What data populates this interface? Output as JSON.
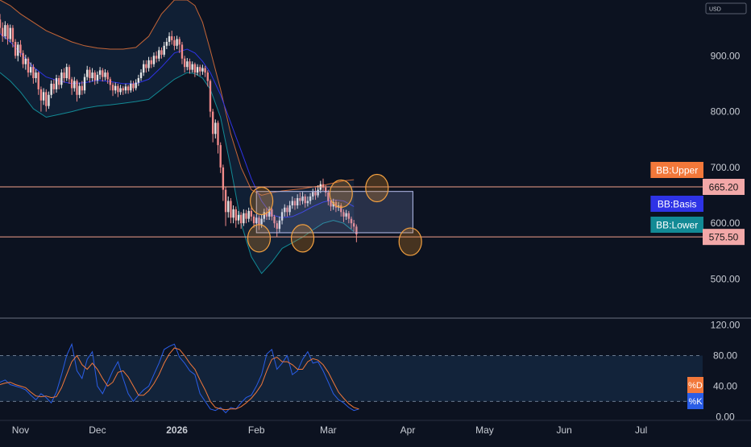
{
  "chart_data": {
    "type": "candlestick",
    "currency": "USD",
    "price_ticks": [
      "900.00",
      "800.00",
      "700.00",
      "600.00",
      "500.00"
    ],
    "price_tick_values": [
      900,
      800,
      700,
      600,
      500
    ],
    "price_range": [
      430,
      1000
    ],
    "osc_ticks": [
      "120.00",
      "80.00",
      "40.00",
      "0.00"
    ],
    "osc_tick_values": [
      120,
      80,
      40,
      0
    ],
    "osc_range": [
      -5,
      128
    ],
    "x_labels": [
      "Nov",
      "Dec",
      "2026",
      "Feb",
      "Mar",
      "Apr",
      "May",
      "Jun",
      "Jul"
    ],
    "x_label_days": [
      0,
      30,
      61,
      92,
      120,
      151,
      181,
      212,
      242
    ],
    "date_range_days": [
      -8,
      266
    ],
    "hlines": [
      {
        "value": 665.2,
        "label": "665.20"
      },
      {
        "value": 575.5,
        "label": "575.50"
      }
    ],
    "range_box": {
      "day_start": 92,
      "day_end": 153,
      "price_low": 583,
      "price_high": 657
    },
    "highlight_circles": [
      {
        "day": 94,
        "price": 640
      },
      {
        "day": 93,
        "price": 573
      },
      {
        "day": 110,
        "price": 573
      },
      {
        "day": 125,
        "price": 653
      },
      {
        "day": 139,
        "price": 663
      },
      {
        "day": 152,
        "price": 567
      }
    ],
    "legend": [
      {
        "text": "BB:Upper",
        "color": "#f2783a",
        "value_for": "upper"
      },
      {
        "text": "BB:Basis",
        "color": "#2e33e6",
        "value_for": "basis"
      },
      {
        "text": "BB:Lower",
        "color": "#128a95",
        "value_for": "lower"
      }
    ],
    "osc_legend": [
      {
        "text": "%D",
        "color": "#f2783a"
      },
      {
        "text": "%K",
        "color": "#2a5de6"
      }
    ],
    "candles": [
      [
        -8,
        965,
        950,
        975,
        940
      ],
      [
        -7,
        950,
        935,
        960,
        925
      ],
      [
        -6,
        935,
        955,
        962,
        930
      ],
      [
        -5,
        955,
        930,
        958,
        920
      ],
      [
        -4,
        930,
        950,
        956,
        924
      ],
      [
        -3,
        950,
        925,
        955,
        915
      ],
      [
        -2,
        925,
        900,
        930,
        895
      ],
      [
        -1,
        900,
        920,
        925,
        890
      ],
      [
        0,
        920,
        905,
        928,
        898
      ],
      [
        1,
        905,
        885,
        910,
        878
      ],
      [
        2,
        885,
        895,
        902,
        875
      ],
      [
        3,
        895,
        870,
        898,
        862
      ],
      [
        4,
        870,
        880,
        888,
        865
      ],
      [
        5,
        880,
        860,
        885,
        850
      ],
      [
        6,
        860,
        870,
        876,
        852
      ],
      [
        7,
        870,
        840,
        872,
        830
      ],
      [
        8,
        840,
        820,
        845,
        800
      ],
      [
        9,
        820,
        835,
        842,
        812
      ],
      [
        10,
        835,
        810,
        840,
        800
      ],
      [
        11,
        810,
        830,
        836,
        805
      ],
      [
        12,
        830,
        850,
        856,
        824
      ],
      [
        13,
        850,
        840,
        858,
        832
      ],
      [
        14,
        840,
        860,
        866,
        834
      ],
      [
        15,
        860,
        848,
        865,
        840
      ],
      [
        16,
        848,
        870,
        876,
        842
      ],
      [
        17,
        870,
        860,
        878,
        852
      ],
      [
        18,
        860,
        880,
        886,
        855
      ],
      [
        19,
        880,
        858,
        884,
        850
      ],
      [
        20,
        858,
        842,
        862,
        830
      ],
      [
        21,
        842,
        855,
        862,
        836
      ],
      [
        22,
        855,
        830,
        858,
        818
      ],
      [
        23,
        830,
        846,
        852,
        824
      ],
      [
        24,
        846,
        838,
        855,
        830
      ],
      [
        25,
        838,
        862,
        868,
        832
      ],
      [
        26,
        862,
        875,
        882,
        856
      ],
      [
        27,
        875,
        860,
        880,
        852
      ],
      [
        28,
        860,
        870,
        878,
        854
      ],
      [
        29,
        870,
        856,
        874,
        848
      ],
      [
        30,
        856,
        866,
        872,
        850
      ],
      [
        31,
        866,
        874,
        880,
        858
      ],
      [
        32,
        874,
        862,
        878,
        854
      ],
      [
        33,
        862,
        870,
        876,
        856
      ],
      [
        34,
        870,
        858,
        874,
        850
      ],
      [
        35,
        858,
        848,
        862,
        838
      ],
      [
        36,
        848,
        838,
        852,
        828
      ],
      [
        37,
        838,
        846,
        852,
        832
      ],
      [
        38,
        846,
        835,
        850,
        826
      ],
      [
        39,
        835,
        842,
        848,
        830
      ],
      [
        40,
        842,
        838,
        846,
        830
      ],
      [
        41,
        838,
        845,
        850,
        832
      ],
      [
        42,
        845,
        838,
        848,
        832
      ],
      [
        43,
        838,
        850,
        856,
        834
      ],
      [
        44,
        850,
        842,
        855,
        836
      ],
      [
        45,
        842,
        852,
        858,
        838
      ],
      [
        46,
        852,
        860,
        866,
        846
      ],
      [
        47,
        860,
        870,
        876,
        855
      ],
      [
        48,
        870,
        885,
        892,
        864
      ],
      [
        49,
        885,
        878,
        892,
        870
      ],
      [
        50,
        878,
        892,
        898,
        872
      ],
      [
        51,
        892,
        885,
        898,
        878
      ],
      [
        52,
        885,
        900,
        906,
        880
      ],
      [
        53,
        900,
        895,
        908,
        888
      ],
      [
        54,
        895,
        910,
        916,
        890
      ],
      [
        55,
        910,
        902,
        915,
        895
      ],
      [
        56,
        902,
        918,
        925,
        898
      ],
      [
        57,
        918,
        925,
        932,
        912
      ],
      [
        58,
        925,
        935,
        942,
        918
      ],
      [
        59,
        935,
        928,
        945,
        920
      ],
      [
        60,
        928,
        918,
        935,
        910
      ],
      [
        61,
        918,
        930,
        936,
        912
      ],
      [
        62,
        930,
        920,
        934,
        905
      ],
      [
        63,
        920,
        895,
        925,
        885
      ],
      [
        64,
        895,
        880,
        900,
        870
      ],
      [
        65,
        880,
        890,
        896,
        874
      ],
      [
        66,
        890,
        875,
        895,
        868
      ],
      [
        67,
        875,
        885,
        890,
        870
      ],
      [
        68,
        885,
        870,
        888,
        862
      ],
      [
        69,
        870,
        880,
        885,
        865
      ],
      [
        70,
        880,
        872,
        884,
        864
      ],
      [
        71,
        872,
        878,
        884,
        866
      ],
      [
        72,
        878,
        870,
        882,
        862
      ],
      [
        73,
        870,
        855,
        874,
        845
      ],
      [
        74,
        855,
        800,
        858,
        790
      ],
      [
        75,
        800,
        760,
        805,
        745
      ],
      [
        76,
        760,
        780,
        786,
        752
      ],
      [
        77,
        780,
        740,
        784,
        725
      ],
      [
        78,
        740,
        700,
        745,
        690
      ],
      [
        79,
        700,
        660,
        705,
        640
      ],
      [
        80,
        660,
        620,
        665,
        595
      ],
      [
        81,
        620,
        640,
        648,
        610
      ],
      [
        82,
        640,
        610,
        645,
        600
      ],
      [
        83,
        610,
        625,
        632,
        600
      ],
      [
        84,
        625,
        605,
        630,
        592
      ],
      [
        85,
        605,
        615,
        622,
        598
      ],
      [
        86,
        615,
        600,
        620,
        590
      ],
      [
        87,
        600,
        618,
        625,
        595
      ],
      [
        88,
        618,
        608,
        624,
        600
      ],
      [
        89,
        608,
        622,
        628,
        602
      ],
      [
        90,
        622,
        612,
        628,
        604
      ],
      [
        91,
        612,
        600,
        616,
        592
      ],
      [
        92,
        600,
        610,
        616,
        594
      ],
      [
        93,
        610,
        598,
        614,
        588
      ],
      [
        94,
        598,
        608,
        615,
        592
      ],
      [
        95,
        608,
        620,
        626,
        602
      ],
      [
        96,
        620,
        612,
        628,
        606
      ],
      [
        97,
        612,
        625,
        630,
        606
      ],
      [
        98,
        625,
        612,
        628,
        605
      ],
      [
        99,
        612,
        600,
        615,
        592
      ],
      [
        100,
        600,
        590,
        605,
        575
      ],
      [
        101,
        590,
        605,
        612,
        584
      ],
      [
        102,
        605,
        620,
        626,
        598
      ],
      [
        103,
        620,
        628,
        634,
        612
      ],
      [
        104,
        628,
        620,
        632,
        612
      ],
      [
        105,
        620,
        632,
        640,
        614
      ],
      [
        106,
        632,
        640,
        648,
        626
      ],
      [
        107,
        640,
        632,
        645,
        624
      ],
      [
        108,
        632,
        645,
        652,
        626
      ],
      [
        109,
        645,
        640,
        655,
        632
      ],
      [
        110,
        640,
        648,
        656,
        634
      ],
      [
        111,
        648,
        636,
        652,
        628
      ],
      [
        112,
        636,
        640,
        648,
        630
      ],
      [
        113,
        640,
        648,
        654,
        634
      ],
      [
        114,
        648,
        656,
        662,
        642
      ],
      [
        115,
        656,
        650,
        664,
        642
      ],
      [
        116,
        650,
        660,
        668,
        646
      ],
      [
        117,
        660,
        670,
        676,
        654
      ],
      [
        118,
        670,
        664,
        680,
        658
      ],
      [
        119,
        664,
        655,
        668,
        648
      ],
      [
        120,
        655,
        640,
        660,
        632
      ],
      [
        121,
        640,
        630,
        645,
        622
      ],
      [
        122,
        630,
        638,
        644,
        624
      ],
      [
        123,
        638,
        628,
        642,
        620
      ],
      [
        124,
        628,
        632,
        638,
        622
      ],
      [
        125,
        632,
        620,
        636,
        612
      ],
      [
        126,
        620,
        612,
        625,
        602
      ],
      [
        127,
        612,
        618,
        624,
        606
      ],
      [
        128,
        618,
        608,
        622,
        600
      ],
      [
        129,
        608,
        600,
        612,
        590
      ],
      [
        130,
        600,
        594,
        606,
        585
      ],
      [
        131,
        594,
        580,
        598,
        566
      ]
    ],
    "bb_upper_days": [
      -8,
      -4,
      0,
      5,
      10,
      15,
      20,
      25,
      30,
      35,
      40,
      45,
      50,
      55,
      60,
      65,
      68,
      71,
      74,
      78,
      82,
      86,
      90,
      94,
      98,
      102,
      106,
      110,
      114,
      118,
      122,
      126,
      130
    ],
    "bb_upper": [
      1000,
      990,
      975,
      960,
      945,
      935,
      925,
      918,
      914,
      912,
      912,
      915,
      935,
      975,
      1000,
      1000,
      990,
      960,
      910,
      840,
      760,
      700,
      660,
      650,
      655,
      658,
      660,
      662,
      665,
      668,
      672,
      676,
      678
    ],
    "bb_basis_days": [
      -8,
      -4,
      0,
      5,
      10,
      15,
      20,
      25,
      30,
      35,
      40,
      45,
      50,
      55,
      60,
      65,
      68,
      71,
      74,
      78,
      82,
      86,
      90,
      94,
      98,
      102,
      106,
      110,
      114,
      118,
      122,
      126,
      130
    ],
    "bb_basis": [
      940,
      925,
      905,
      880,
      862,
      855,
      850,
      852,
      856,
      854,
      850,
      850,
      858,
      880,
      905,
      912,
      905,
      890,
      870,
      830,
      780,
      730,
      680,
      640,
      615,
      610,
      612,
      620,
      630,
      638,
      642,
      640,
      630
    ],
    "bb_lower_days": [
      -8,
      -4,
      0,
      5,
      10,
      15,
      20,
      25,
      30,
      35,
      40,
      45,
      50,
      55,
      60,
      65,
      68,
      71,
      74,
      78,
      82,
      86,
      90,
      94,
      98,
      102,
      106,
      110,
      114,
      118,
      122,
      126,
      130
    ],
    "bb_lower": [
      870,
      855,
      835,
      805,
      790,
      795,
      800,
      806,
      810,
      812,
      815,
      818,
      822,
      840,
      858,
      870,
      868,
      860,
      840,
      790,
      700,
      600,
      540,
      510,
      530,
      555,
      565,
      575,
      588,
      600,
      605,
      600,
      585
    ],
    "stoch_days": [
      -8,
      -6,
      -4,
      -2,
      0,
      2,
      4,
      6,
      8,
      10,
      12,
      14,
      16,
      18,
      20,
      22,
      24,
      26,
      28,
      30,
      32,
      34,
      36,
      38,
      40,
      42,
      44,
      46,
      48,
      50,
      52,
      54,
      56,
      58,
      60,
      62,
      64,
      66,
      68,
      70,
      72,
      74,
      76,
      78,
      80,
      82,
      84,
      86,
      88,
      90,
      92,
      94,
      96,
      98,
      100,
      102,
      104,
      106,
      108,
      110,
      112,
      114,
      116,
      118,
      120,
      122,
      124,
      126,
      128,
      130,
      132
    ],
    "stoch_k": [
      45,
      48,
      42,
      40,
      38,
      35,
      28,
      22,
      30,
      25,
      18,
      32,
      55,
      80,
      95,
      60,
      50,
      75,
      85,
      40,
      30,
      45,
      60,
      72,
      50,
      30,
      20,
      28,
      35,
      40,
      55,
      70,
      88,
      92,
      95,
      78,
      70,
      60,
      55,
      30,
      20,
      10,
      8,
      12,
      5,
      12,
      10,
      18,
      25,
      28,
      40,
      55,
      82,
      88,
      62,
      70,
      80,
      55,
      60,
      75,
      85,
      70,
      72,
      60,
      45,
      30,
      22,
      18,
      12,
      8,
      10
    ],
    "stoch_d": [
      42,
      44,
      45,
      42,
      40,
      38,
      32,
      27,
      26,
      27,
      25,
      26,
      38,
      55,
      72,
      80,
      68,
      62,
      70,
      62,
      50,
      40,
      45,
      58,
      60,
      52,
      40,
      28,
      28,
      34,
      43,
      55,
      70,
      82,
      90,
      88,
      80,
      70,
      62,
      48,
      35,
      20,
      12,
      10,
      9,
      10,
      10,
      13,
      18,
      24,
      32,
      42,
      60,
      75,
      78,
      72,
      72,
      68,
      62,
      62,
      72,
      76,
      74,
      68,
      58,
      45,
      32,
      24,
      17,
      12,
      10
    ]
  }
}
